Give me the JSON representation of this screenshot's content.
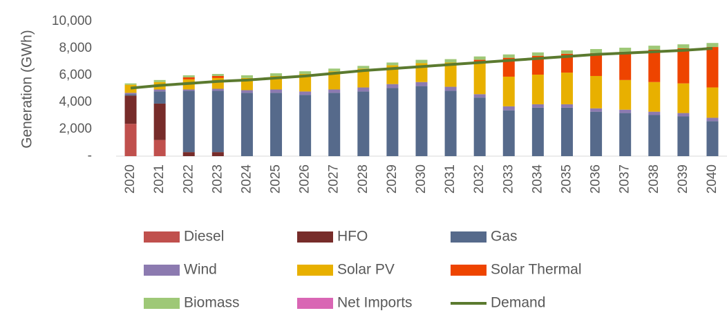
{
  "chart_data": {
    "type": "bar",
    "stacked": true,
    "ylabel": "Generation (GWh)",
    "categories": [
      "2020",
      "2021",
      "2022",
      "2023",
      "2024",
      "2025",
      "2026",
      "2027",
      "2028",
      "2029",
      "2030",
      "2031",
      "2032",
      "2033",
      "2034",
      "2035",
      "2036",
      "2037",
      "2038",
      "2039",
      "2040"
    ],
    "ylim": [
      0,
      10000
    ],
    "yticks": [
      {
        "value": 0,
        "label": "-"
      },
      {
        "value": 2000,
        "label": "2,000"
      },
      {
        "value": 4000,
        "label": "4,000"
      },
      {
        "value": 6000,
        "label": "6,000"
      },
      {
        "value": 8000,
        "label": "8,000"
      },
      {
        "value": 10000,
        "label": "10,000"
      }
    ],
    "series": [
      {
        "name": "Diesel",
        "color": "#c0504d",
        "values": [
          2400,
          1200,
          0,
          0,
          0,
          0,
          0,
          0,
          0,
          0,
          0,
          0,
          0,
          0,
          0,
          0,
          0,
          0,
          0,
          0,
          0
        ]
      },
      {
        "name": "HFO",
        "color": "#772c2a",
        "values": [
          2100,
          2700,
          300,
          300,
          0,
          0,
          0,
          0,
          0,
          0,
          0,
          0,
          0,
          0,
          0,
          0,
          0,
          0,
          0,
          0,
          0
        ]
      },
      {
        "name": "Gas",
        "color": "#566a8b",
        "values": [
          100,
          900,
          4550,
          4550,
          4700,
          4700,
          4550,
          4700,
          4800,
          5050,
          5200,
          4850,
          4350,
          3400,
          3600,
          3600,
          3300,
          3200,
          3050,
          2950,
          2600
        ]
      },
      {
        "name": "Wind",
        "color": "#8c7ab0",
        "values": [
          100,
          150,
          100,
          150,
          200,
          250,
          250,
          250,
          300,
          300,
          300,
          300,
          250,
          300,
          250,
          250,
          250,
          250,
          250,
          250,
          250
        ]
      },
      {
        "name": "Solar PV",
        "color": "#e8b000",
        "values": [
          600,
          550,
          750,
          800,
          900,
          1000,
          1300,
          1350,
          1400,
          1400,
          1400,
          1800,
          2350,
          2200,
          2200,
          2350,
          2400,
          2200,
          2200,
          2200,
          2250
        ]
      },
      {
        "name": "Solar Thermal",
        "color": "#ee4400",
        "values": [
          0,
          0,
          150,
          150,
          0,
          0,
          0,
          0,
          0,
          0,
          0,
          0,
          200,
          1400,
          1400,
          1400,
          1700,
          2100,
          2400,
          2600,
          3000
        ]
      },
      {
        "name": "Biomass",
        "color": "#9ec877",
        "values": [
          100,
          150,
          150,
          150,
          200,
          200,
          200,
          200,
          200,
          200,
          250,
          250,
          250,
          250,
          250,
          250,
          300,
          300,
          300,
          300,
          300
        ]
      },
      {
        "name": "Net Imports",
        "color": "#d966b4",
        "values": [
          0,
          0,
          0,
          0,
          0,
          0,
          0,
          0,
          0,
          0,
          0,
          0,
          0,
          0,
          0,
          0,
          0,
          0,
          0,
          0,
          0
        ]
      },
      {
        "name": "Demand",
        "type": "line",
        "color": "#5b7a2f",
        "values": [
          5050,
          5250,
          5400,
          5550,
          5650,
          5800,
          5950,
          6150,
          6350,
          6500,
          6650,
          6800,
          6950,
          7100,
          7250,
          7400,
          7550,
          7650,
          7750,
          7850,
          8000
        ]
      }
    ]
  }
}
